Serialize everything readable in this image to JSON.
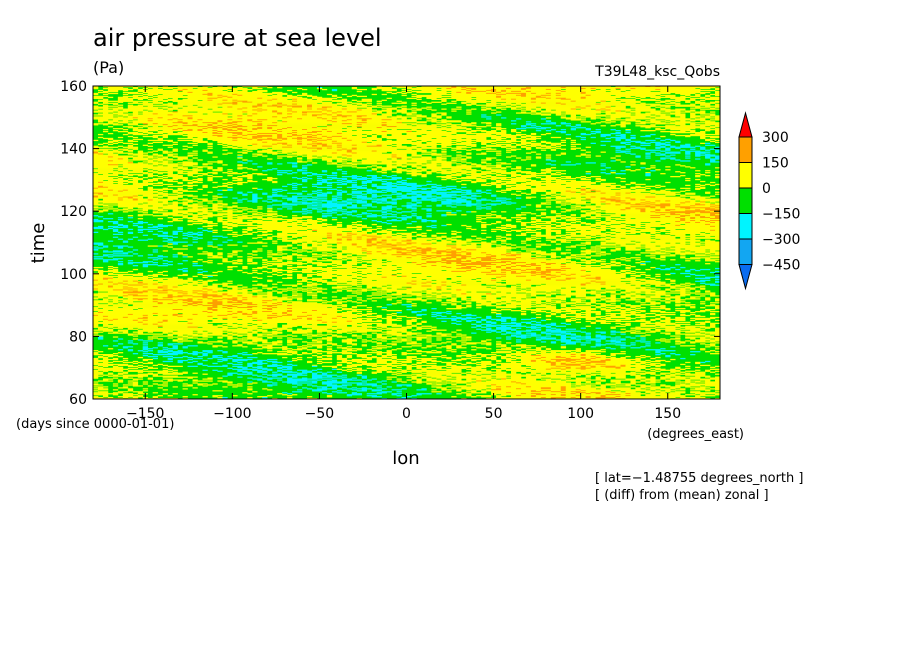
{
  "title": "air pressure at sea level",
  "units": "(Pa)",
  "run_label": "T39L48_ksc_Qobs",
  "chart_data": {
    "type": "heatmap",
    "title": "air pressure at sea level",
    "xlabel": "lon",
    "ylabel": "time",
    "x_units": "(degrees_east)",
    "y_units": "(days since 0000-01-01)",
    "xlim": [
      -180,
      180
    ],
    "ylim": [
      60,
      160
    ],
    "x_ticks": [
      -150,
      -100,
      -50,
      0,
      50,
      100,
      150
    ],
    "y_ticks": [
      60,
      80,
      100,
      120,
      140,
      160
    ],
    "colorbar": {
      "levels": [
        -450,
        -300,
        -150,
        0,
        150,
        300
      ],
      "level_labels": [
        "−450",
        "−300",
        "−150",
        "0",
        "150",
        "300"
      ],
      "colors": [
        "#0a6cf0",
        "#12a6f2",
        "#00f4ff",
        "#00e000",
        "#ffff00",
        "#ffa000",
        "#ff0000"
      ],
      "extend": "both"
    },
    "annotations": [
      "[ lat=−1.48755 degrees_north ]",
      "[ (diff) from (mean) zonal ]"
    ]
  }
}
